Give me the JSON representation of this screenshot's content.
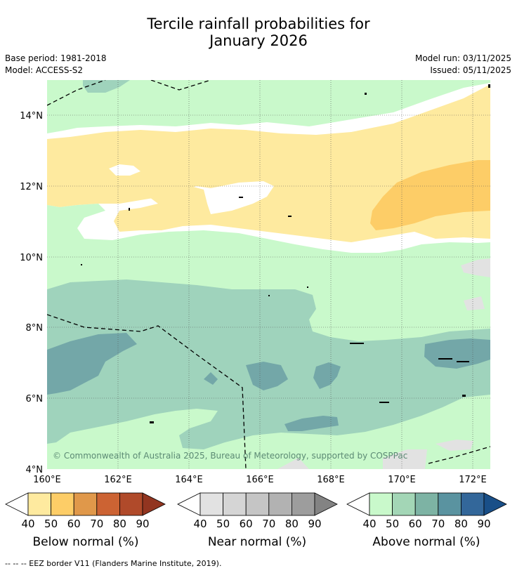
{
  "title": {
    "line1": "Tercile rainfall probabilities for",
    "line2": "January 2026"
  },
  "meta": {
    "base_period": "Base period: 1981-2018",
    "model": "Model: ACCESS-S2",
    "model_run": "Model run: 03/11/2025",
    "issued": "Issued: 05/11/2025"
  },
  "map": {
    "lat_labels": [
      "14°N",
      "12°N",
      "10°N",
      "8°N",
      "6°N",
      "4°N"
    ],
    "lon_labels": [
      "160°E",
      "162°E",
      "164°E",
      "166°E",
      "168°E",
      "170°E",
      "172°E"
    ],
    "copyright": "© Commonwealth of Australia 2025, Bureau of Meteorology, supported by COSPPac",
    "colors": {
      "ocean_white": "#ffffff",
      "above_50": "#c9f9cb",
      "above_60": "#9fd3bc",
      "above_70": "#73a7a8",
      "below_50": "#feea9f",
      "below_60": "#fdcd67",
      "near": "#e2e2e2"
    }
  },
  "colorbars": [
    {
      "label": "Below normal (%)",
      "ticks": [
        "40",
        "50",
        "60",
        "70",
        "80",
        "90"
      ],
      "colors": [
        "#feea9f",
        "#fdcd67",
        "#e0984a",
        "#cc6333",
        "#b04a2a",
        "#923520"
      ]
    },
    {
      "label": "Near normal (%)",
      "ticks": [
        "40",
        "50",
        "60",
        "70",
        "80",
        "90"
      ],
      "colors": [
        "#e2e2e2",
        "#d5d5d5",
        "#c5c5c5",
        "#b2b2b2",
        "#9d9d9d",
        "#838383"
      ]
    },
    {
      "label": "Above normal (%)",
      "ticks": [
        "40",
        "50",
        "60",
        "70",
        "80",
        "90"
      ],
      "colors": [
        "#c9f9cb",
        "#a3d6b6",
        "#7db3a4",
        "#5a93a0",
        "#33679a",
        "#194f88"
      ]
    }
  ],
  "footer": "--  --  -- EEZ border V11 (Flanders Marine Institute, 2019)."
}
